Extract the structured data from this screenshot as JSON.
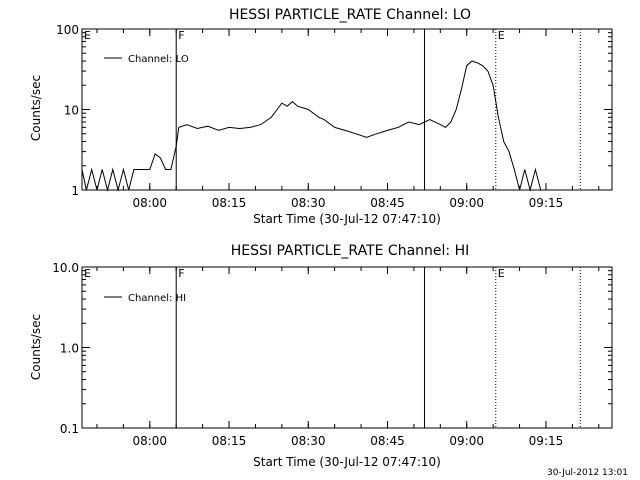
{
  "chart_data": [
    {
      "type": "line",
      "title": "HESSI PARTICLE_RATE Channel: LO",
      "xlabel": "Start Time (30-Jul-12 07:47:10)",
      "ylabel": "Counts/sec",
      "y_scale": "log",
      "xlim": [
        "07:47:10",
        "09:27:30"
      ],
      "ylim": [
        1,
        100
      ],
      "x_ticks": [
        "08:00",
        "08:15",
        "08:30",
        "08:45",
        "09:00",
        "09:15"
      ],
      "y_ticks": [
        "1",
        "10",
        "100"
      ],
      "legend": {
        "placement": "top-left",
        "entries": [
          "Channel: LO"
        ]
      },
      "flags": [
        {
          "label": "E",
          "time": "07:47:10",
          "style": "none"
        },
        {
          "label": "F",
          "time": "08:05:00",
          "style": "solid"
        },
        {
          "label": "",
          "time": "08:52:00",
          "style": "solid"
        },
        {
          "label": "E",
          "time": "09:05:30",
          "style": "dotted"
        },
        {
          "label": "",
          "time": "09:21:30",
          "style": "dotted"
        }
      ],
      "series": [
        {
          "name": "Channel: LO",
          "x": [
            "07:47:10",
            "07:48:00",
            "07:49:00",
            "07:50:00",
            "07:51:00",
            "07:52:00",
            "07:53:00",
            "07:54:00",
            "07:55:00",
            "07:56:00",
            "07:57:00",
            "07:58:00",
            "07:59:00",
            "08:00:00",
            "08:01:00",
            "08:02:00",
            "08:03:00",
            "08:04:00",
            "08:05:00",
            "08:05:30",
            "08:07:00",
            "08:09:00",
            "08:11:00",
            "08:13:00",
            "08:15:00",
            "08:17:00",
            "08:19:00",
            "08:21:00",
            "08:23:00",
            "08:25:00",
            "08:26:00",
            "08:27:00",
            "08:28:00",
            "08:30:00",
            "08:32:00",
            "08:33:00",
            "08:35:00",
            "08:37:00",
            "08:39:00",
            "08:41:00",
            "08:43:00",
            "08:45:00",
            "08:47:00",
            "08:49:00",
            "08:51:00",
            "08:53:00",
            "08:55:00",
            "08:56:00",
            "08:57:00",
            "08:58:00",
            "08:59:00",
            "09:00:00",
            "09:01:00",
            "09:02:00",
            "09:03:00",
            "09:04:00",
            "09:05:00",
            "09:06:00",
            "09:07:00",
            "09:08:00",
            "09:09:00",
            "09:10:00",
            "09:11:00",
            "09:12:00",
            "09:13:00",
            "09:14:00",
            "09:15:00"
          ],
          "y": [
            1.8,
            1,
            1.8,
            1,
            1.8,
            1,
            1.8,
            1,
            1.8,
            1,
            1.8,
            1.8,
            1.8,
            1.8,
            2.8,
            2.5,
            1.8,
            1.8,
            3.5,
            6.0,
            6.5,
            5.8,
            6.2,
            5.5,
            6.0,
            5.8,
            6.0,
            6.5,
            8.0,
            12.0,
            11.0,
            12.5,
            11.0,
            10.0,
            8.0,
            7.5,
            6.0,
            5.5,
            5.0,
            4.5,
            5.0,
            5.5,
            6.0,
            7.0,
            6.5,
            7.5,
            6.5,
            6.0,
            7.0,
            10.0,
            18.0,
            35.0,
            40.0,
            38.0,
            35.0,
            30.0,
            20.0,
            8.0,
            4.0,
            3.0,
            1.8,
            1,
            1.8,
            1,
            1.8,
            1,
            1
          ]
        }
      ]
    },
    {
      "type": "line",
      "title": "HESSI PARTICLE_RATE Channel: HI",
      "xlabel": "Start Time (30-Jul-12 07:47:10)",
      "ylabel": "Counts/sec",
      "y_scale": "log",
      "xlim": [
        "07:47:10",
        "09:27:30"
      ],
      "ylim": [
        0.1,
        10.0
      ],
      "x_ticks": [
        "08:00",
        "08:15",
        "08:30",
        "08:45",
        "09:00",
        "09:15"
      ],
      "y_ticks": [
        "0.1",
        "1.0",
        "10.0"
      ],
      "legend": {
        "placement": "top-left",
        "entries": [
          "Channel: HI"
        ]
      },
      "flags": [
        {
          "label": "E",
          "time": "07:47:10",
          "style": "none"
        },
        {
          "label": "F",
          "time": "08:05:00",
          "style": "solid"
        },
        {
          "label": "",
          "time": "08:52:00",
          "style": "solid"
        },
        {
          "label": "E",
          "time": "09:05:30",
          "style": "dotted"
        },
        {
          "label": "",
          "time": "09:21:30",
          "style": "dotted"
        }
      ],
      "series": [
        {
          "name": "Channel: HI",
          "x": [],
          "y": []
        }
      ]
    }
  ],
  "footer": {
    "timestamp": "30-Jul-2012 13:01"
  }
}
